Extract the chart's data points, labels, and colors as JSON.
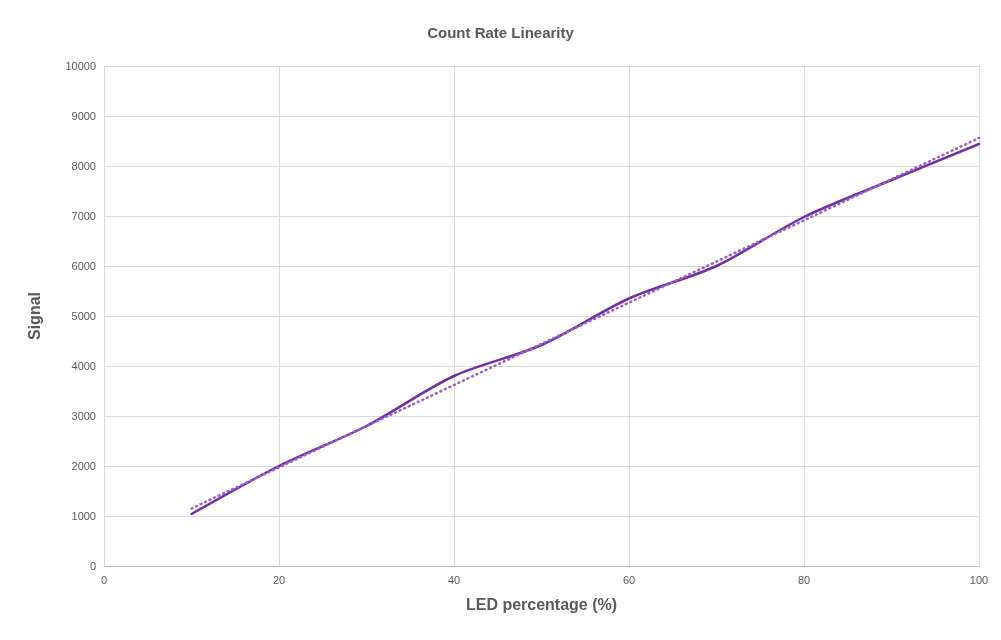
{
  "chart_data": {
    "type": "line",
    "title": "Count Rate Linearity",
    "xlabel": "LED percentage (%)",
    "ylabel": "Signal",
    "xlim": [
      0,
      100
    ],
    "xticks": [
      0,
      20,
      40,
      60,
      80,
      100
    ],
    "ylim": [
      0,
      10000
    ],
    "yticks": [
      0,
      1000,
      2000,
      3000,
      4000,
      5000,
      6000,
      7000,
      8000,
      9000,
      10000
    ],
    "grid": true,
    "marker": "none",
    "series": [
      {
        "color": "#7030a0",
        "line_style": "solid",
        "x": [
          10,
          20,
          30,
          40,
          50,
          60,
          70,
          80,
          90,
          100
        ],
        "values": [
          1040,
          2000,
          2800,
          3800,
          4420,
          5350,
          6000,
          6980,
          7720,
          8440
        ]
      },
      {
        "color": "#9b5fd0",
        "line_style": "dotted",
        "x": [
          10,
          100
        ],
        "values": [
          1150,
          8560
        ]
      }
    ]
  }
}
